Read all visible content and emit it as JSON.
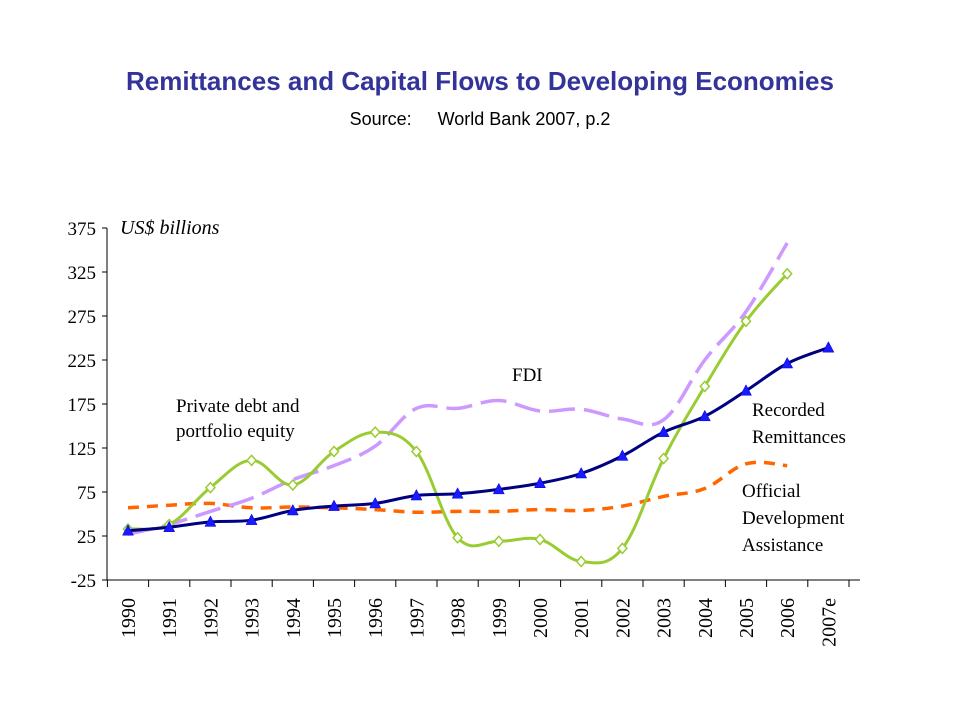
{
  "title": "Remittances and Capital Flows to Developing Economies",
  "subtitle": {
    "label": "Source:",
    "text": "World Bank 2007, p.2"
  },
  "colors": {
    "title": "#333399",
    "remittances": "#000080",
    "fdi": "#cc99ff",
    "private": "#99cc33",
    "oda": "#ff6600"
  },
  "chart_data": {
    "type": "line",
    "unit_label": "US$ billions",
    "categories": [
      "1990",
      "1991",
      "1992",
      "1993",
      "1994",
      "1995",
      "1996",
      "1997",
      "1998",
      "1999",
      "2000",
      "2001",
      "2002",
      "2003",
      "2004",
      "2005",
      "2006",
      "2007e"
    ],
    "ylim": [
      -25,
      375
    ],
    "yticks": [
      -25,
      25,
      75,
      125,
      175,
      225,
      275,
      325,
      375
    ],
    "ytick_labels": [
      "-25",
      "25",
      "75",
      "125",
      "175",
      "225",
      "275",
      "325",
      "375"
    ],
    "grid": false,
    "series": [
      {
        "key": "remittances",
        "label_lines": [
          "Recorded",
          "Remittances"
        ],
        "style": "solid",
        "marker": "triangle",
        "values": [
          31,
          35,
          41,
          43,
          54,
          59,
          62,
          71,
          73,
          78,
          85,
          96,
          116,
          143,
          161,
          190,
          221,
          239
        ]
      },
      {
        "key": "fdi",
        "label_lines": [
          "FDI"
        ],
        "style": "long-dash",
        "marker": "none",
        "values": [
          27,
          38,
          53,
          68,
          89,
          105,
          127,
          170,
          170,
          179,
          167,
          169,
          158,
          157,
          225,
          280,
          358,
          null
        ]
      },
      {
        "key": "private",
        "label_lines": [
          "Private debt and",
          "portfolio equity"
        ],
        "style": "solid",
        "marker": "diamond",
        "values": [
          33,
          38,
          80,
          111,
          83,
          121,
          143,
          121,
          23,
          19,
          21,
          -4,
          11,
          113,
          195,
          269,
          323,
          null
        ]
      },
      {
        "key": "oda",
        "label_lines": [
          "Official",
          "Development",
          "Assistance"
        ],
        "style": "short-dash",
        "marker": "none",
        "values": [
          57,
          60,
          62,
          57,
          58,
          57,
          55,
          52,
          53,
          53,
          55,
          54,
          59,
          70,
          79,
          107,
          105,
          null
        ]
      }
    ]
  }
}
